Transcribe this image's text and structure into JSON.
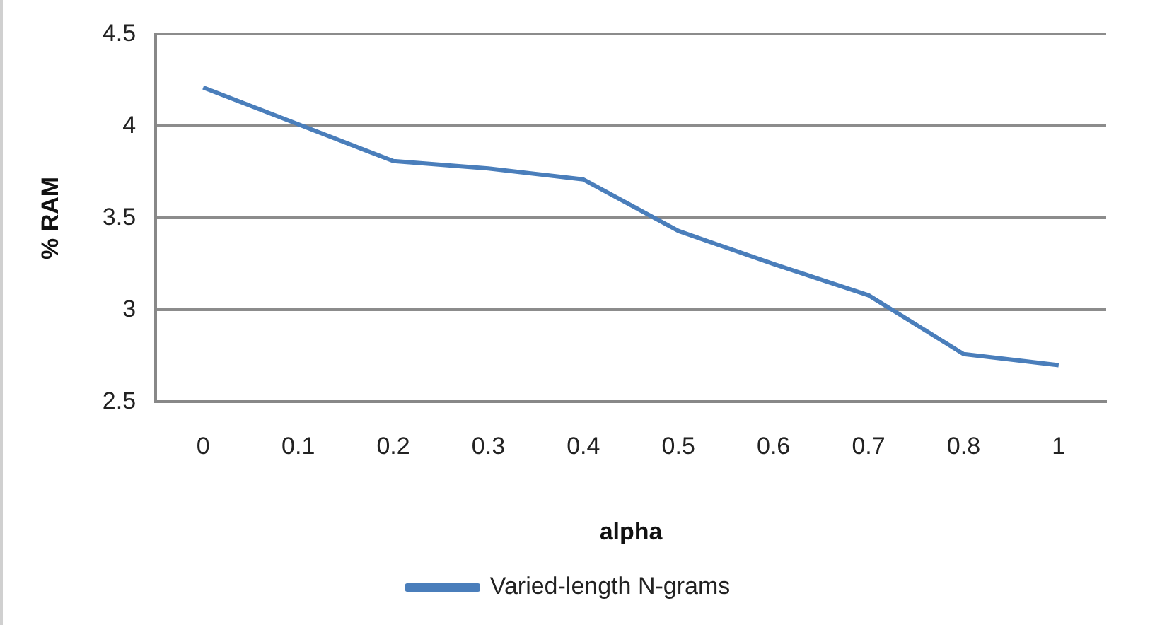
{
  "chart_data": {
    "type": "line",
    "xlabel": "alpha",
    "ylabel": "% RAM",
    "categories": [
      "0",
      "0.1",
      "0.2",
      "0.3",
      "0.4",
      "0.5",
      "0.6",
      "0.7",
      "0.8",
      "1"
    ],
    "series": [
      {
        "name": "Varied-length N-grams",
        "color": "#4a7ebb",
        "values": [
          4.21,
          4.01,
          3.81,
          3.77,
          3.71,
          3.43,
          3.25,
          3.08,
          2.76,
          2.7
        ]
      }
    ],
    "ylim": [
      2.5,
      4.5
    ],
    "yticks": [
      2.5,
      3,
      3.5,
      4,
      4.5
    ],
    "grid": "y",
    "legend": "bottom",
    "marker": "none",
    "line_style": "solid"
  }
}
